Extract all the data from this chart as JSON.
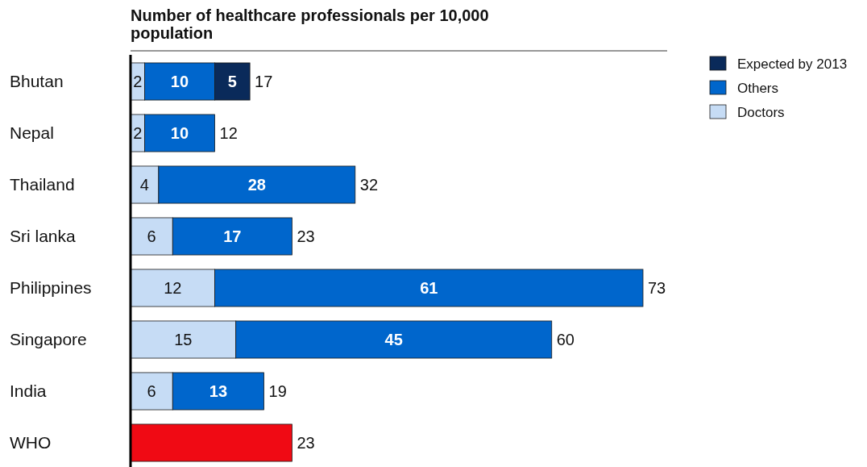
{
  "chart_data": {
    "type": "bar",
    "orientation": "horizontal",
    "stacked": true,
    "title": "Number of healthcare professionals per 10,000 population",
    "categories": [
      "Bhutan",
      "Nepal",
      "Thailand",
      "Sri lanka",
      "Philippines",
      "Singapore",
      "India",
      "WHO"
    ],
    "series": [
      {
        "name": "Doctors",
        "color": "#c6dcf5",
        "values": [
          2,
          2,
          4,
          6,
          12,
          15,
          6,
          null
        ],
        "value_labels": [
          "2",
          "2",
          "4",
          "6",
          "12",
          "15",
          "6",
          null
        ]
      },
      {
        "name": "Others",
        "color": "#0066cc",
        "values": [
          10,
          10,
          28,
          17,
          61,
          45,
          13,
          null
        ],
        "value_labels": [
          "10",
          "10",
          "28",
          "17",
          "61",
          "45",
          "13",
          null
        ]
      },
      {
        "name": "Expected by 2013",
        "color": "#0a2a5a",
        "values": [
          5,
          null,
          null,
          null,
          null,
          null,
          null,
          null
        ],
        "value_labels": [
          "5",
          null,
          null,
          null,
          null,
          null,
          null,
          null
        ]
      },
      {
        "color": "#f00a14",
        "values": [
          null,
          null,
          null,
          null,
          null,
          null,
          null,
          23
        ],
        "value_labels": [
          null,
          null,
          null,
          null,
          null,
          null,
          null,
          null
        ]
      }
    ],
    "totals": [
      "17",
      "12",
      "32",
      "23",
      "73",
      "60",
      "19",
      "23"
    ],
    "legend": "top right",
    "grid": false
  }
}
